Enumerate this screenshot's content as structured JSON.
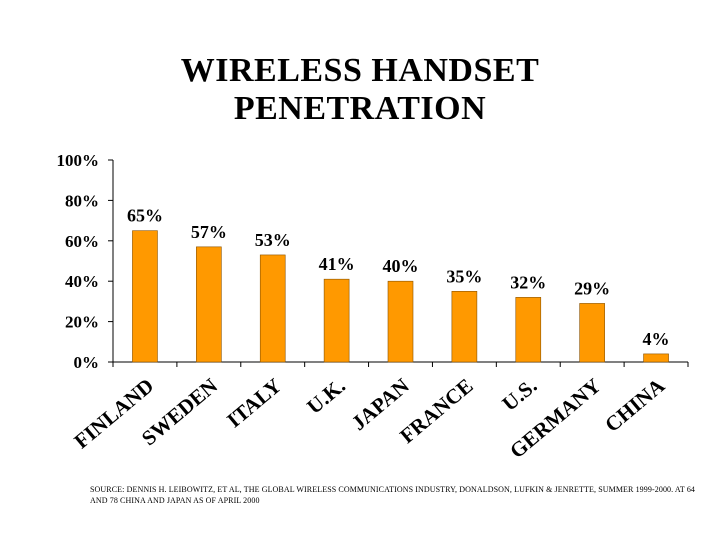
{
  "title_line1": "WIRELESS HANDSET",
  "title_line2": "PENETRATION",
  "source_text": "SOURCE: DENNIS H. LEIBOWITZ, ET AL, THE GLOBAL WIRELESS COMMUNICATIONS INDUSTRY, DONALDSON, LUFKIN & JENRETTE, SUMMER 1999-2000. AT 64 AND 78 CHINA AND JAPAN AS OF APRIL 2000",
  "colors": {
    "bar": "#FF9900",
    "bar_outline": "#8A5200",
    "axis": "#000000"
  },
  "chart_data": {
    "type": "bar",
    "categories": [
      "FINLAND",
      "SWEDEN",
      "ITALY",
      "U.K.",
      "JAPAN",
      "FRANCE",
      "U.S.",
      "GERMANY",
      "CHINA"
    ],
    "values": [
      65,
      57,
      53,
      41,
      40,
      35,
      32,
      29,
      4
    ],
    "data_labels": [
      "65%",
      "57%",
      "53%",
      "41%",
      "40%",
      "35%",
      "32%",
      "29%",
      "4%"
    ],
    "y_ticks": [
      "0%",
      "20%",
      "40%",
      "60%",
      "80%",
      "100%"
    ],
    "ylim": [
      0,
      100
    ],
    "grid": false,
    "legend": "none"
  }
}
